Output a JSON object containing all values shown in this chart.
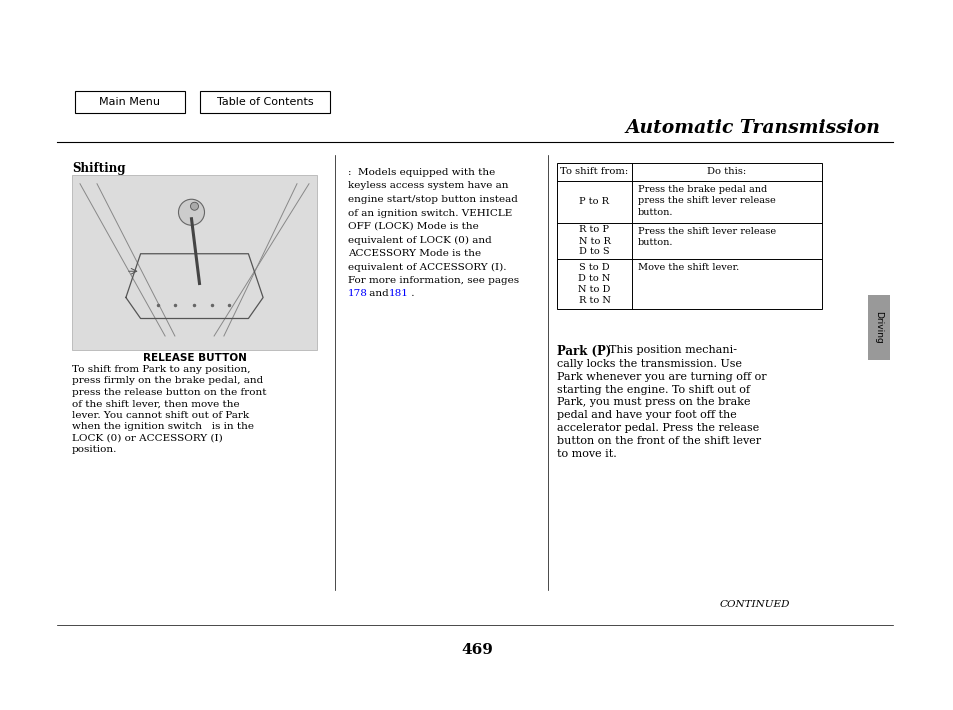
{
  "bg_color": "#ffffff",
  "title": "Automatic Transmission",
  "page_number": "469",
  "continued_text": "CONTINUED",
  "nav_buttons": [
    "Main Menu",
    "Table of Contents"
  ],
  "section_heading": "Shifting",
  "release_button_label": "RELEASE BUTTON",
  "body_text_col1": "To shift from Park to any position,\npress firmly on the brake pedal, and\npress the release button on the front\nof the shift lever, then move the\nlever. You cannot shift out of Park\nwhen the ignition switch   is in the\nLOCK (0) or ACCESSORY (I)\nposition.",
  "col2_lines": [
    ":  Models equipped with the",
    "keyless access system have an",
    "engine start/stop button instead",
    "of an ignition switch. VEHICLE",
    "OFF (LOCK) Mode is the",
    "equivalent of LOCK (0) and",
    "ACCESSORY Mode is the",
    "equivalent of ACCESSORY (I).",
    "For more information, see pages",
    "178_LINK and 181_LINK ."
  ],
  "table_headers": [
    "To shift from:",
    "Do this:"
  ],
  "table_rows": [
    {
      "from": "P to R",
      "do": "Press the brake pedal and\npress the shift lever release\nbutton."
    },
    {
      "from": "R to P\nN to R\nD to S",
      "do": "Press the shift lever release\nbutton."
    },
    {
      "from": "S to D\nD to N\nN to D\nR to N",
      "do": "Move the shift lever."
    }
  ],
  "park_p_heading": "Park (P)",
  "park_p_inline": "     This position mechani-",
  "park_p_rest": "cally locks the transmission. Use\nPark whenever you are turning off or\nstarting the engine. To shift out of\nPark, you must press on the brake\npedal and have your foot off the\naccelerator pedal. Press the release\nbutton on the front of the shift lever\nto move it.",
  "driving_tab_text": "Driving",
  "gray_tab_color": "#999999",
  "link_color": "#0000ff",
  "text_color": "#000000",
  "light_gray": "#e0e0e0",
  "border_color": "#000000"
}
